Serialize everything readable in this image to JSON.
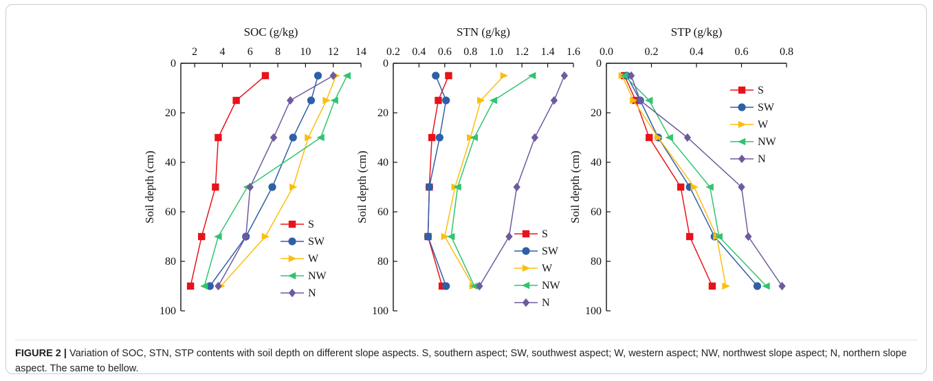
{
  "caption": {
    "label": "FIGURE 2 |",
    "text": "Variation of SOC, STN, STP contents with soil depth on different slope aspects. S, southern aspect; SW, southwest aspect; W, western aspect; NW, northwest slope aspect; N, northern slope aspect. The same to bellow."
  },
  "colors": {
    "S": "#e8121b",
    "SW": "#2f5fa6",
    "W": "#fbbe0e",
    "NW": "#30c46e",
    "N": "#6e5a9e"
  },
  "chart_data": [
    {
      "type": "line",
      "title": "SOC (g/kg)",
      "ylabel": "Soil depth (cm)",
      "xlim": [
        1,
        14
      ],
      "xticks": [
        "2",
        "4",
        "6",
        "8",
        "10",
        "12",
        "14"
      ],
      "ylim": [
        0,
        100
      ],
      "yticks": [
        "0",
        "20",
        "40",
        "60",
        "80",
        "100"
      ],
      "y_inverted": true,
      "legend_position": "bottom-right",
      "depths": [
        5,
        15,
        30,
        50,
        70,
        90
      ],
      "series": [
        {
          "name": "S",
          "marker": "square",
          "values": [
            7.1,
            5.0,
            3.7,
            3.5,
            2.5,
            1.7
          ]
        },
        {
          "name": "SW",
          "marker": "circle",
          "values": [
            10.9,
            10.4,
            9.1,
            7.6,
            5.7,
            3.1
          ]
        },
        {
          "name": "W",
          "marker": "triangle-right",
          "values": [
            12.2,
            11.5,
            10.2,
            9.1,
            7.1,
            3.9
          ]
        },
        {
          "name": "NW",
          "marker": "triangle-left",
          "values": [
            13.0,
            12.1,
            11.1,
            5.8,
            3.7,
            2.7
          ]
        },
        {
          "name": "N",
          "marker": "diamond",
          "values": [
            12.0,
            8.9,
            7.7,
            6.0,
            5.7,
            3.7
          ]
        }
      ]
    },
    {
      "type": "line",
      "title": "STN (g/kg)",
      "ylabel": "Soil depth (cm)",
      "xlim": [
        0.2,
        1.6
      ],
      "xticks": [
        "0.2",
        "0.4",
        "0.6",
        "0.8",
        "1.0",
        "1.2",
        "1.4",
        "1.6"
      ],
      "ylim": [
        0,
        100
      ],
      "yticks": [
        "0",
        "20",
        "40",
        "60",
        "80",
        "100"
      ],
      "y_inverted": true,
      "legend_position": "bottom-right",
      "depths": [
        5,
        15,
        30,
        50,
        70,
        90
      ],
      "series": [
        {
          "name": "S",
          "marker": "square",
          "values": [
            0.63,
            0.55,
            0.5,
            0.48,
            0.47,
            0.58
          ]
        },
        {
          "name": "SW",
          "marker": "circle",
          "values": [
            0.53,
            0.61,
            0.56,
            0.48,
            0.47,
            0.61
          ]
        },
        {
          "name": "W",
          "marker": "triangle-right",
          "values": [
            1.06,
            0.88,
            0.8,
            0.68,
            0.6,
            0.82
          ]
        },
        {
          "name": "NW",
          "marker": "triangle-left",
          "values": [
            1.28,
            0.98,
            0.83,
            0.7,
            0.65,
            0.83
          ]
        },
        {
          "name": "N",
          "marker": "diamond",
          "values": [
            1.53,
            1.45,
            1.3,
            1.16,
            1.1,
            0.87
          ]
        }
      ]
    },
    {
      "type": "line",
      "title": "STP (g/kg)",
      "ylabel": "Soil depth (cm)",
      "xlim": [
        0,
        0.8
      ],
      "xticks": [
        "0.0",
        "0.2",
        "0.4",
        "0.6",
        "0.8"
      ],
      "ylim": [
        0,
        100
      ],
      "yticks": [
        "0",
        "20",
        "40",
        "60",
        "80",
        "100"
      ],
      "y_inverted": true,
      "legend_position": "top-right",
      "depths": [
        5,
        15,
        30,
        50,
        70,
        90
      ],
      "series": [
        {
          "name": "S",
          "marker": "square",
          "values": [
            0.08,
            0.13,
            0.19,
            0.33,
            0.37,
            0.47
          ]
        },
        {
          "name": "SW",
          "marker": "circle",
          "values": [
            0.09,
            0.15,
            0.23,
            0.37,
            0.48,
            0.67
          ]
        },
        {
          "name": "W",
          "marker": "triangle-right",
          "values": [
            0.07,
            0.12,
            0.23,
            0.39,
            0.49,
            0.53
          ]
        },
        {
          "name": "NW",
          "marker": "triangle-left",
          "values": [
            0.08,
            0.19,
            0.28,
            0.46,
            0.5,
            0.71
          ]
        },
        {
          "name": "N",
          "marker": "diamond",
          "values": [
            0.11,
            0.15,
            0.36,
            0.6,
            0.63,
            0.78
          ]
        }
      ]
    }
  ]
}
